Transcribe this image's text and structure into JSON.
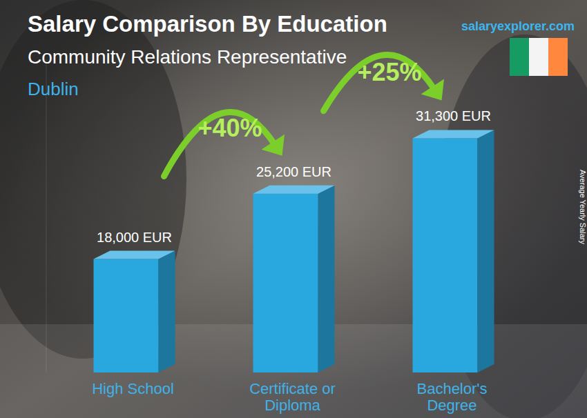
{
  "chart_data": {
    "type": "bar",
    "title": "Salary Comparison By Education",
    "subtitle": "Community Relations Representative",
    "location": "Dublin",
    "source": "salaryexplorer.com",
    "ylabel": "Average Yearly Salary",
    "categories": [
      "High School",
      "Certificate or Diploma",
      "Bachelor's Degree"
    ],
    "values": [
      18000,
      25200,
      31300
    ],
    "value_labels": [
      "18,000 EUR",
      "25,200 EUR",
      "31,300 EUR"
    ],
    "annotations": [
      "+40%",
      "+25%"
    ],
    "color": "#29a8e0",
    "ylim": [
      5500,
      40000
    ],
    "data_labels": true,
    "tick_labels": "x",
    "grid": false
  }
}
